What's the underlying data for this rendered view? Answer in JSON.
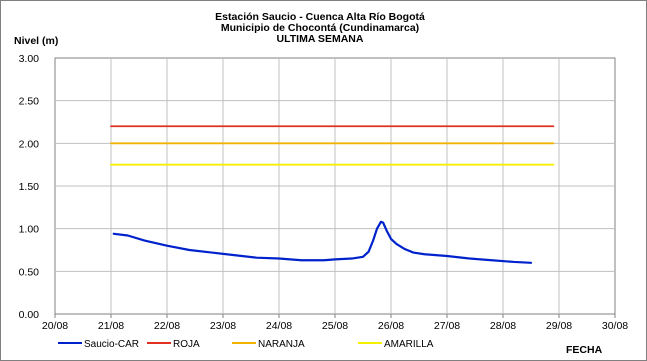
{
  "chart_data": {
    "type": "line",
    "title": [
      "Estación Saucio - Cuenca Alta Río Bogotá",
      "Municipio de Chocontá (Cundinamarca)",
      "ULTIMA SEMANA"
    ],
    "ylabel": "Nivel (m)",
    "xlabel": "FECHA",
    "ylim": [
      0,
      3
    ],
    "yticks": [
      "0.00",
      "0.50",
      "1.00",
      "1.50",
      "2.00",
      "2.50",
      "3.00"
    ],
    "xlim": [
      0,
      10
    ],
    "xticks": [
      "20/08",
      "21/08",
      "22/08",
      "23/08",
      "24/08",
      "25/08",
      "26/08",
      "27/08",
      "28/08",
      "29/08",
      "30/08"
    ],
    "grid": true,
    "legend_position": "bottom",
    "series": [
      {
        "name": "Saucio-CAR",
        "color": "#0022cc",
        "x": [
          1.05,
          1.3,
          1.6,
          2.0,
          2.4,
          2.8,
          3.2,
          3.6,
          4.0,
          4.4,
          4.8,
          5.0,
          5.3,
          5.5,
          5.6,
          5.68,
          5.75,
          5.82,
          5.86,
          5.92,
          6.0,
          6.1,
          6.25,
          6.4,
          6.6,
          7.0,
          7.4,
          7.8,
          8.2,
          8.5
        ],
        "values": [
          0.94,
          0.92,
          0.86,
          0.8,
          0.75,
          0.72,
          0.69,
          0.66,
          0.65,
          0.63,
          0.63,
          0.64,
          0.65,
          0.67,
          0.73,
          0.86,
          1.0,
          1.08,
          1.07,
          0.98,
          0.88,
          0.82,
          0.76,
          0.72,
          0.7,
          0.68,
          0.65,
          0.63,
          0.61,
          0.6
        ]
      },
      {
        "name": "ROJA",
        "color": "#e03020",
        "x": [
          1.0,
          8.9
        ],
        "values": [
          2.2,
          2.2
        ]
      },
      {
        "name": "NARANJA",
        "color": "#f0b400",
        "x": [
          1.0,
          8.9
        ],
        "values": [
          2.0,
          2.0
        ]
      },
      {
        "name": "AMARILLA",
        "color": "#f5f000",
        "x": [
          1.0,
          8.9
        ],
        "values": [
          1.75,
          1.75
        ]
      }
    ]
  }
}
